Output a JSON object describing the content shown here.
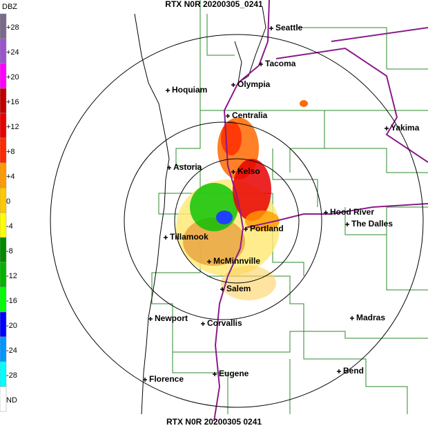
{
  "header": {
    "title": "RTX N0R 20200305_0241"
  },
  "footer": {
    "title": "RTX N0R 20200305  0241"
  },
  "legend": {
    "title": "DBZ",
    "items": [
      {
        "label": "+28",
        "color": "#7a6a8a"
      },
      {
        "label": "+24",
        "color": "#9a55cc"
      },
      {
        "label": "+20",
        "color": "#ff00ff"
      },
      {
        "label": "+16",
        "color": "#c00000"
      },
      {
        "label": "+12",
        "color": "#e80000"
      },
      {
        "label": "+8",
        "color": "#ff2800"
      },
      {
        "label": "+4",
        "color": "#ff9a00"
      },
      {
        "label": "0",
        "color": "#ffc800"
      },
      {
        "label": "-4",
        "color": "#ffff00"
      },
      {
        "label": "-8",
        "color": "#008a00"
      },
      {
        "label": "-12",
        "color": "#00b400"
      },
      {
        "label": "-16",
        "color": "#00ff00"
      },
      {
        "label": "-20",
        "color": "#0000ff"
      },
      {
        "label": "-24",
        "color": "#0096ff"
      },
      {
        "label": "-28",
        "color": "#00ffff"
      },
      {
        "label": "ND",
        "color": "#ffffff"
      }
    ]
  },
  "cities": [
    "Seattle",
    "Tacoma",
    "Olympia",
    "Hoquiam",
    "Centralia",
    "Yakima",
    "Astoria",
    "Kelso",
    "Hood River",
    "The Dalles",
    "Portland",
    "Tillamook",
    "McMinnville",
    "Salem",
    "Newport",
    "Corvallis",
    "Madras",
    "Eugene",
    "Bend",
    "Florence"
  ]
}
